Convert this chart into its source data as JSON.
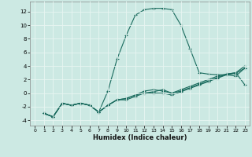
{
  "xlabel": "Humidex (Indice chaleur)",
  "xlim": [
    -0.5,
    23.5
  ],
  "ylim": [
    -4.8,
    13.5
  ],
  "yticks": [
    -4,
    -2,
    0,
    2,
    4,
    6,
    8,
    10,
    12
  ],
  "xticks": [
    0,
    1,
    2,
    3,
    4,
    5,
    6,
    7,
    8,
    9,
    10,
    11,
    12,
    13,
    14,
    15,
    16,
    17,
    18,
    19,
    20,
    21,
    22,
    23
  ],
  "background_color": "#cce9e3",
  "grid_color": "#e8f5f2",
  "line_color": "#1a6b5e",
  "line1_x": [
    1,
    2,
    3,
    4,
    5,
    6,
    7,
    8,
    9,
    10,
    11,
    12,
    13,
    14,
    15,
    16,
    17,
    18,
    19,
    20,
    21,
    22,
    23
  ],
  "line1_y": [
    -3.0,
    -3.5,
    -1.5,
    -1.8,
    -1.5,
    -1.8,
    -2.8,
    0.3,
    5.0,
    8.5,
    11.5,
    12.3,
    12.5,
    12.5,
    12.3,
    10.0,
    6.5,
    3.0,
    2.8,
    2.7,
    2.7,
    2.5,
    3.7
  ],
  "line2_x": [
    1,
    2,
    3,
    4,
    5,
    6,
    7,
    8,
    9,
    10,
    11,
    12,
    13,
    14,
    15,
    16,
    17,
    18,
    19,
    20,
    21,
    22,
    23
  ],
  "line2_y": [
    -3.0,
    -3.5,
    -1.5,
    -1.8,
    -1.5,
    -1.8,
    -2.8,
    -1.8,
    -1.0,
    -0.8,
    -0.3,
    0.3,
    0.5,
    0.3,
    0.0,
    0.3,
    0.8,
    1.3,
    1.8,
    2.3,
    2.8,
    3.0,
    1.2
  ],
  "line3_x": [
    1,
    2,
    3,
    4,
    5,
    6,
    7,
    8,
    9,
    10,
    11,
    12,
    13,
    14,
    15,
    16,
    17,
    18,
    19,
    20,
    21,
    22,
    23
  ],
  "line3_y": [
    -3.0,
    -3.5,
    -1.5,
    -1.8,
    -1.5,
    -1.8,
    -2.8,
    -1.8,
    -1.0,
    -1.0,
    -0.5,
    0.0,
    0.0,
    0.0,
    -0.3,
    0.2,
    0.7,
    1.2,
    1.7,
    2.2,
    2.7,
    2.9,
    3.7
  ],
  "line4_x": [
    1,
    2,
    3,
    4,
    5,
    6,
    7,
    8,
    9,
    10,
    11,
    12,
    13,
    14,
    15,
    16,
    17,
    18,
    19,
    20,
    21,
    22,
    23
  ],
  "line4_y": [
    -3.0,
    -3.5,
    -1.5,
    -1.8,
    -1.5,
    -1.8,
    -2.8,
    -1.8,
    -1.0,
    -0.8,
    -0.3,
    0.0,
    0.2,
    0.5,
    0.0,
    0.5,
    1.0,
    1.5,
    2.0,
    2.5,
    2.8,
    3.0,
    4.0
  ]
}
